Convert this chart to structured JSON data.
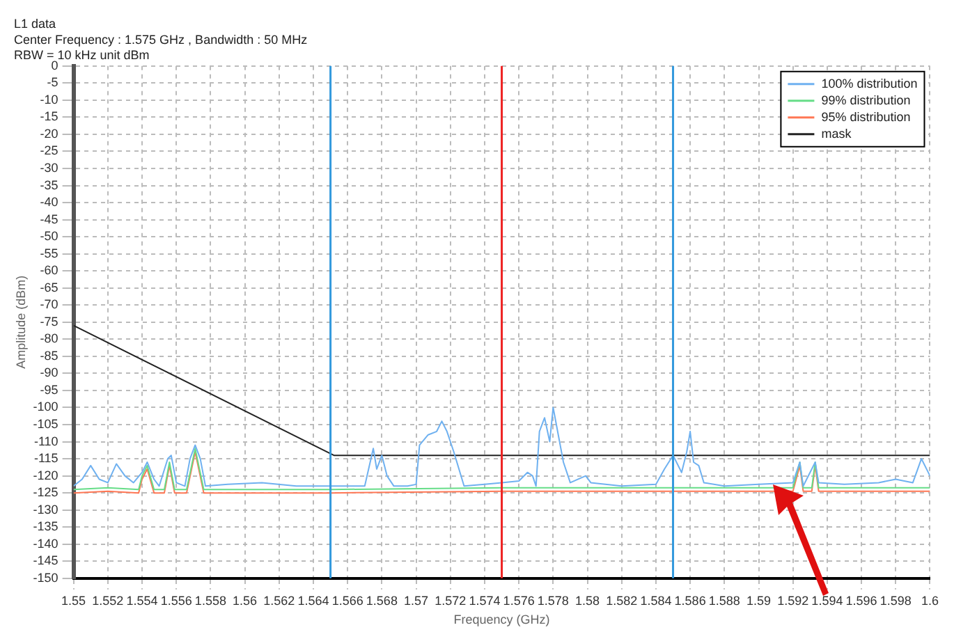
{
  "chart_data": {
    "type": "line",
    "title": "L1 data",
    "subtitle": "Center Frequency : 1.575 GHz , Bandwidth : 50 MHz",
    "annotations": [
      "RBW = 10 kHz unit dBm"
    ],
    "xlabel": "Frequency (GHz)",
    "ylabel": "Amplitude (dBm)",
    "xlim": [
      1.55,
      1.6
    ],
    "xticks": [
      1.55,
      1.552,
      1.554,
      1.556,
      1.558,
      1.56,
      1.562,
      1.564,
      1.566,
      1.568,
      1.57,
      1.572,
      1.574,
      1.576,
      1.578,
      1.58,
      1.582,
      1.584,
      1.586,
      1.588,
      1.59,
      1.592,
      1.594,
      1.596,
      1.598,
      1.6
    ],
    "ylim": [
      -150,
      0
    ],
    "yticks": [
      0,
      -5,
      -10,
      -15,
      -20,
      -25,
      -30,
      -35,
      -40,
      -45,
      -50,
      -55,
      -60,
      -65,
      -70,
      -75,
      -80,
      -85,
      -90,
      -95,
      -100,
      -105,
      -110,
      -115,
      -120,
      -125,
      -130,
      -135,
      -140,
      -145,
      -150
    ],
    "grid": true,
    "legend": "top right",
    "marker": "none",
    "line_style": "solid",
    "ref_lines": [
      {
        "axis": "x",
        "value": 1.565,
        "color": "#3399dd"
      },
      {
        "axis": "x",
        "value": 1.575,
        "color": "#ee2222"
      },
      {
        "axis": "x",
        "value": 1.585,
        "color": "#3399dd"
      }
    ],
    "series": [
      {
        "name": "100% distribution",
        "color": "#6fb1f0",
        "x": [
          1.55,
          1.5505,
          1.551,
          1.5515,
          1.552,
          1.5525,
          1.553,
          1.5535,
          1.554,
          1.5543,
          1.5547,
          1.555,
          1.5555,
          1.5557,
          1.556,
          1.5565,
          1.5568,
          1.5571,
          1.5574,
          1.5577,
          1.559,
          1.561,
          1.563,
          1.565,
          1.567,
          1.5675,
          1.5677,
          1.568,
          1.5683,
          1.5687,
          1.5695,
          1.57,
          1.5702,
          1.5707,
          1.5712,
          1.5715,
          1.5718,
          1.572,
          1.5722,
          1.5725,
          1.5728,
          1.574,
          1.575,
          1.576,
          1.5765,
          1.5768,
          1.577,
          1.5772,
          1.5775,
          1.5778,
          1.578,
          1.5783,
          1.5786,
          1.579,
          1.5799,
          1.5802,
          1.582,
          1.584,
          1.5845,
          1.585,
          1.5855,
          1.5858,
          1.586,
          1.5862,
          1.5865,
          1.5868,
          1.588,
          1.59,
          1.592,
          1.5924,
          1.5926,
          1.5933,
          1.5935,
          1.595,
          1.597,
          1.598,
          1.599,
          1.5995,
          1.6
        ],
        "values": [
          -123,
          -121,
          -117,
          -121,
          -122,
          -116.5,
          -120,
          -122,
          -119,
          -116,
          -121,
          -123,
          -115,
          -114,
          -122,
          -123,
          -115,
          -111,
          -115,
          -123,
          -122.5,
          -122,
          -123,
          -123,
          -123,
          -112,
          -118,
          -114,
          -120,
          -123,
          -123,
          -122.5,
          -111,
          -108,
          -107,
          -104,
          -107,
          -110,
          -113,
          -118,
          -123,
          -122.5,
          -122,
          -121.5,
          -119,
          -120,
          -123,
          -107,
          -103,
          -110,
          -100,
          -108,
          -116,
          -122,
          -120,
          -122,
          -123,
          -122.5,
          -118,
          -114,
          -119,
          -113,
          -107,
          -116,
          -117,
          -122,
          -123,
          -122.5,
          -122,
          -116,
          -123,
          -116,
          -122,
          -122.5,
          -122,
          -121,
          -122,
          -115,
          -120
        ]
      },
      {
        "name": "99% distribution",
        "color": "#66dd88",
        "x": [
          1.55,
          1.552,
          1.5538,
          1.554,
          1.5543,
          1.5547,
          1.5553,
          1.5556,
          1.5559,
          1.5566,
          1.5571,
          1.5576,
          1.565,
          1.575,
          1.592,
          1.5924,
          1.5926,
          1.5931,
          1.5933,
          1.5935,
          1.6
        ],
        "values": [
          -124,
          -123.5,
          -124,
          -120,
          -117,
          -124,
          -124,
          -116,
          -124,
          -124,
          -112,
          -124,
          -124,
          -123.5,
          -123.5,
          -116,
          -123.5,
          -123.5,
          -116,
          -123.5,
          -123.5
        ]
      },
      {
        "name": "95% distribution",
        "color": "#ff7755",
        "x": [
          1.55,
          1.552,
          1.5538,
          1.554,
          1.5543,
          1.5547,
          1.5553,
          1.5556,
          1.5559,
          1.5566,
          1.5571,
          1.5576,
          1.565,
          1.575,
          1.592,
          1.5924,
          1.5926,
          1.5931,
          1.5933,
          1.5935,
          1.6
        ],
        "values": [
          -125,
          -124.5,
          -125,
          -121,
          -118,
          -125,
          -125,
          -117,
          -125,
          -125,
          -113,
          -125,
          -125,
          -124.5,
          -124.5,
          -117,
          -124.5,
          -124.5,
          -117,
          -124.5,
          -124.5
        ]
      },
      {
        "name": "mask",
        "color": "#222222",
        "x": [
          1.55,
          1.5652,
          1.6
        ],
        "values": [
          -76,
          -114,
          -114
        ]
      }
    ]
  }
}
